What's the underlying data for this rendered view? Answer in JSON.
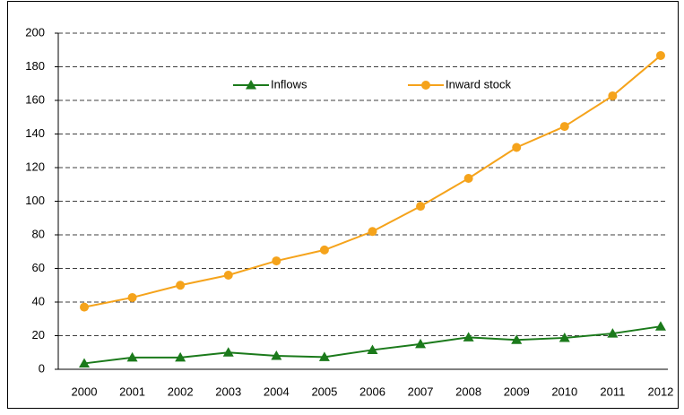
{
  "chart_data": {
    "type": "line",
    "categories": [
      "2000",
      "2001",
      "2002",
      "2003",
      "2004",
      "2005",
      "2006",
      "2007",
      "2008",
      "2009",
      "2010",
      "2011",
      "2012"
    ],
    "series": [
      {
        "name": "Inflows",
        "color": "#1b7a1b",
        "marker": "triangle",
        "values": [
          3.5,
          7,
          7,
          10,
          8,
          7.3,
          11.5,
          15,
          19,
          17.5,
          18.7,
          21.3,
          25.5
        ]
      },
      {
        "name": "Inward stock",
        "color": "#f5a31b",
        "marker": "circle",
        "values": [
          37,
          42.7,
          50,
          56,
          64.5,
          71,
          82,
          97,
          113.6,
          132,
          144.5,
          162.7,
          186.7
        ]
      }
    ],
    "ylim": [
      0,
      200
    ],
    "yticks": [
      0,
      20,
      40,
      60,
      80,
      100,
      120,
      140,
      160,
      180,
      200
    ],
    "grid": true,
    "legend": "top"
  }
}
